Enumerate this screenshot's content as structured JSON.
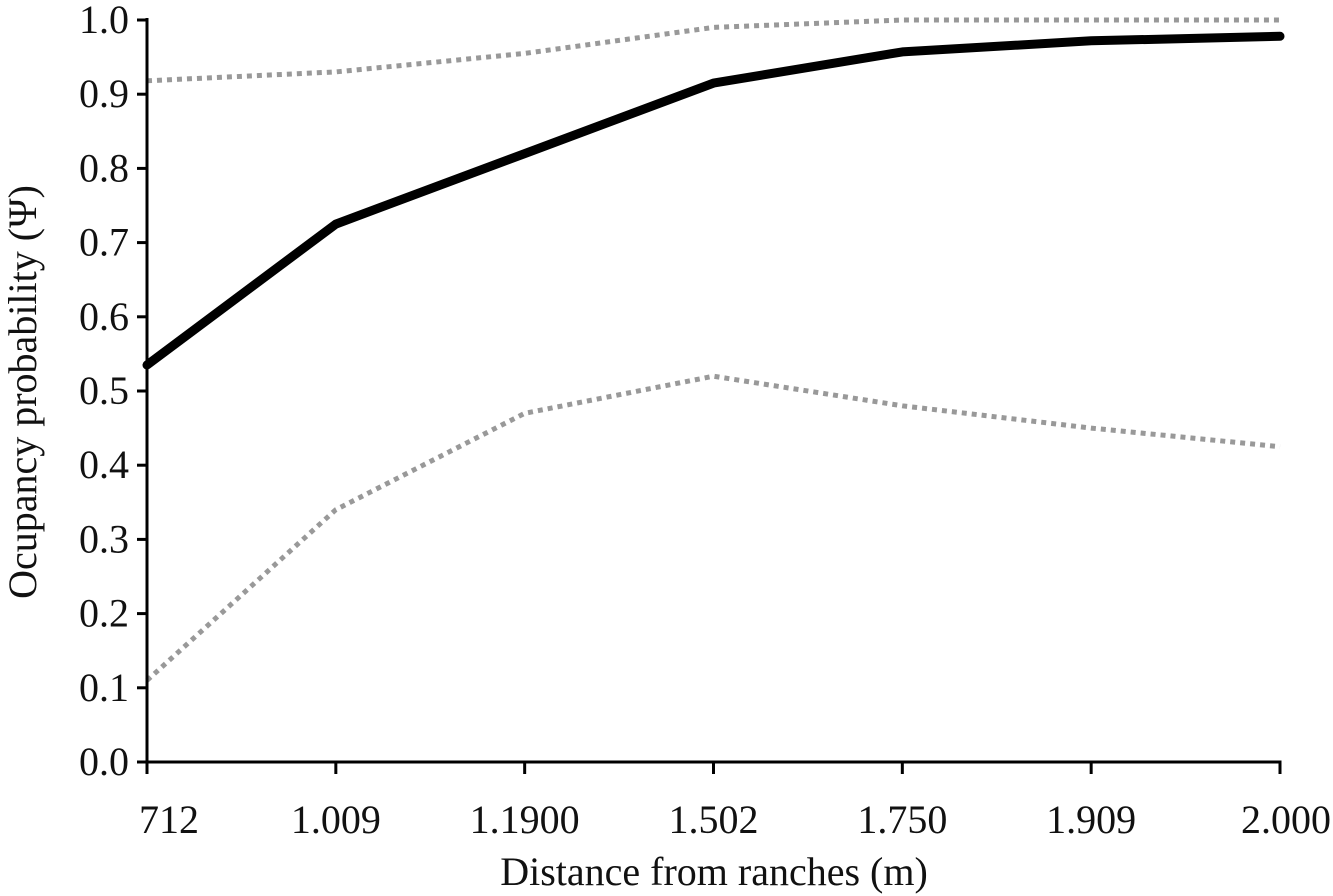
{
  "chart_data": {
    "type": "line",
    "title": "",
    "xlabel": "Distance from ranches (m)",
    "ylabel": "Ocupancy probability (Ψ)",
    "categories": [
      "712",
      "1.009",
      "1.1900",
      "1.502",
      "1.750",
      "1.909",
      "2.000"
    ],
    "ylim": [
      0,
      1
    ],
    "yticks": [
      "0.0",
      "0.1",
      "0.2",
      "0.3",
      "0.4",
      "0.5",
      "0.6",
      "0.7",
      "0.8",
      "0.9",
      "1.0"
    ],
    "grid": false,
    "legend": "none",
    "series": [
      {
        "role": "estimate",
        "style": "solid",
        "color": "#000000",
        "values": [
          0.535,
          0.725,
          0.82,
          0.915,
          0.957,
          0.972,
          0.978
        ]
      },
      {
        "role": "upper",
        "style": "dotted",
        "color": "#999999",
        "values": [
          0.918,
          0.93,
          0.955,
          0.99,
          1.0,
          1.0,
          1.0
        ]
      },
      {
        "role": "lower",
        "style": "dotted",
        "color": "#999999",
        "values": [
          0.11,
          0.34,
          0.47,
          0.52,
          0.48,
          0.45,
          0.425
        ]
      }
    ]
  }
}
